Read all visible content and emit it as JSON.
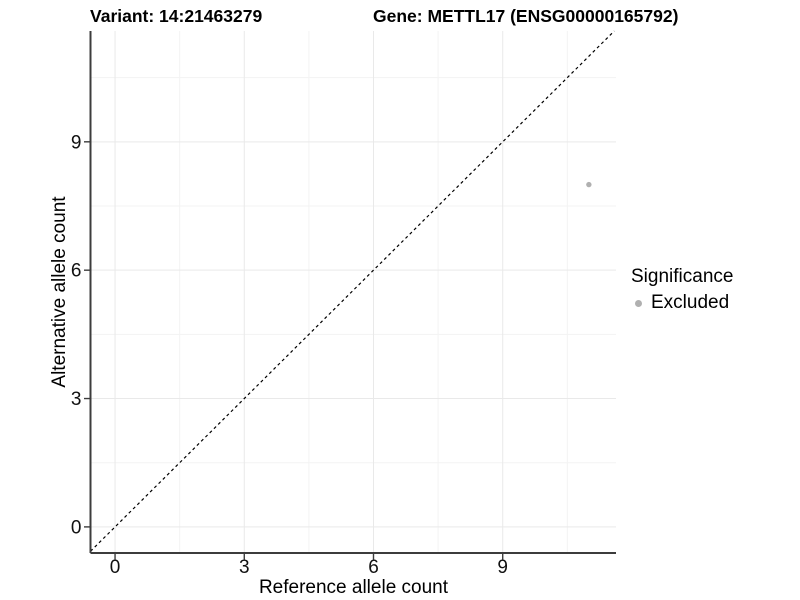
{
  "chart_data": {
    "type": "scatter",
    "title_left": "Variant: 14:21463279",
    "title_right": "Gene: METTL17 (ENSG00000165792)",
    "xlabel": "Reference allele count",
    "ylabel": "Alternative allele count",
    "xlim": [
      -0.57,
      11.63
    ],
    "ylim": [
      -0.61,
      11.59
    ],
    "x_major_ticks": [
      0,
      3,
      6,
      9
    ],
    "y_major_ticks": [
      0,
      3,
      6,
      9
    ],
    "x_minor_ticks": [
      1.5,
      4.5,
      7.5,
      10.5
    ],
    "y_minor_ticks": [
      1.5,
      4.5,
      7.5,
      10.5
    ],
    "grid": true,
    "legend_position": "right",
    "identity_line": {
      "slope": 1,
      "intercept": 0,
      "style": "dashed",
      "color": "#000000"
    },
    "series": [
      {
        "name": "Excluded",
        "color": "#b0b0b0",
        "points": [
          {
            "x": 11,
            "y": 8
          }
        ]
      }
    ]
  },
  "legend": {
    "title": "Significance",
    "items": [
      {
        "label": "Excluded",
        "color": "#b0b0b0"
      }
    ]
  },
  "colors": {
    "axis_line": "#3c3c3c",
    "grid_major": "#e9e9e9",
    "grid_minor": "#f3f3f3",
    "tick_text": "#111111"
  }
}
